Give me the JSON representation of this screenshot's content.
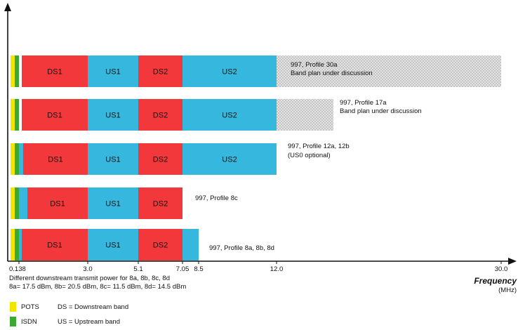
{
  "colors": {
    "pots": "#f2e600",
    "isdn": "#3aa832",
    "us0": "#36b8de",
    "ds": "#f2383a",
    "us": "#36b8de",
    "discussion": "#d6d6d6"
  },
  "chart_data": {
    "type": "bar",
    "xlabel": "Frequency",
    "xunit": "(MHz)",
    "tick_labels": [
      "0.138",
      "3.0",
      "5.1",
      "7.05",
      "8.5",
      "12.0",
      "30.0"
    ],
    "rows": [
      {
        "label": "997, Profile 30a",
        "sublabel": "Band plan under discussion",
        "bands": [
          {
            "kind": "pots",
            "label": ""
          },
          {
            "kind": "isdn",
            "label": ""
          },
          {
            "kind": "ds",
            "label": "DS1"
          },
          {
            "kind": "us",
            "label": "US1"
          },
          {
            "kind": "ds",
            "label": "DS2"
          },
          {
            "kind": "us",
            "label": "US2"
          },
          {
            "kind": "discussion",
            "label": ""
          }
        ]
      },
      {
        "label": "997, Profile 17a",
        "sublabel": "Band plan under discussion",
        "bands": [
          {
            "kind": "pots",
            "label": ""
          },
          {
            "kind": "isdn",
            "label": ""
          },
          {
            "kind": "ds",
            "label": "DS1"
          },
          {
            "kind": "us",
            "label": "US1"
          },
          {
            "kind": "ds",
            "label": "DS2"
          },
          {
            "kind": "us",
            "label": "US2"
          },
          {
            "kind": "discussion",
            "label": ""
          }
        ]
      },
      {
        "label": "997, Profile 12a, 12b",
        "sublabel": "(US0 optional)",
        "bands": [
          {
            "kind": "pots",
            "label": ""
          },
          {
            "kind": "isdn",
            "label": ""
          },
          {
            "kind": "us0",
            "label": ""
          },
          {
            "kind": "ds",
            "label": "DS1"
          },
          {
            "kind": "us",
            "label": "US1"
          },
          {
            "kind": "ds",
            "label": "DS2"
          },
          {
            "kind": "us",
            "label": "US2"
          }
        ]
      },
      {
        "label": "997, Profile 8c",
        "sublabel": "",
        "bands": [
          {
            "kind": "pots",
            "label": ""
          },
          {
            "kind": "isdn",
            "label": ""
          },
          {
            "kind": "us0",
            "label": ""
          },
          {
            "kind": "ds",
            "label": "DS1"
          },
          {
            "kind": "us",
            "label": "US1"
          },
          {
            "kind": "ds",
            "label": "DS2"
          }
        ]
      },
      {
        "label": "997, Profile 8a, 8b, 8d",
        "sublabel": "",
        "bands": [
          {
            "kind": "pots",
            "label": ""
          },
          {
            "kind": "isdn",
            "label": ""
          },
          {
            "kind": "us0",
            "label": ""
          },
          {
            "kind": "ds",
            "label": "DS1"
          },
          {
            "kind": "us",
            "label": "US1"
          },
          {
            "kind": "ds",
            "label": "DS2"
          },
          {
            "kind": "us",
            "label": ""
          }
        ]
      }
    ],
    "notes": [
      "Different downstream transmit power for 8a, 8b, 8c, 8d",
      "8a= 17.5 dBm, 8b= 20.5 dBm, 8c= 11.5 dBm, 8d= 14.5 dBm"
    ],
    "legend": [
      {
        "kind": "pots",
        "name": "POTS",
        "desc": "DS = Downstream band"
      },
      {
        "kind": "isdn",
        "name": "ISDN",
        "desc": "US = Upstream band"
      }
    ]
  }
}
